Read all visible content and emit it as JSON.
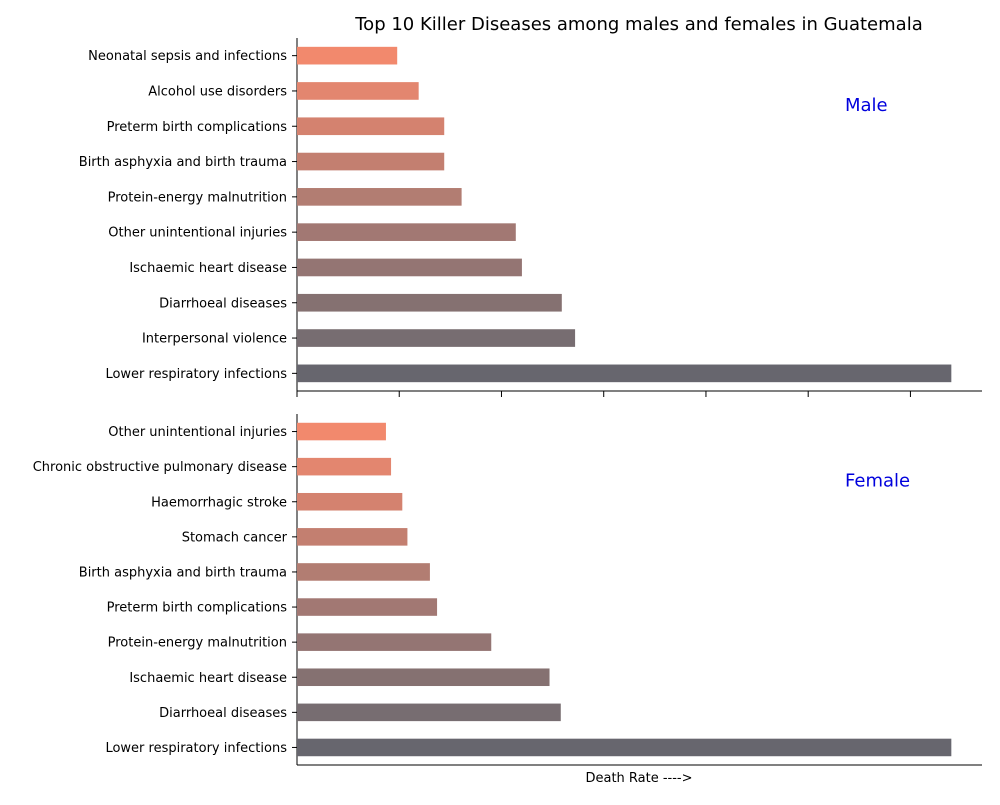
{
  "chart_data": {
    "type": "bar",
    "orientation": "horizontal",
    "title": "Top 10 Killer Diseases among males and females in Guatemala",
    "xlabel": "Death Rate ---->",
    "x_tick_labels_shown": false,
    "grid": false,
    "panel_label_color": "#0000dd",
    "bar_palette": [
      "#67666e",
      "#776d71",
      "#857171",
      "#947573",
      "#a27873",
      "#b27d72",
      "#c37f70",
      "#d4826f",
      "#e3866f",
      "#f2896d"
    ],
    "panels": [
      {
        "label": "Male",
        "categories": [
          "Lower respiratory infections",
          "Interpersonal violence",
          "Diarrhoeal diseases",
          "Ischaemic heart disease",
          "Other unintentional injuries",
          "Protein-energy malnutrition",
          "Birth asphyxia and birth trauma",
          "Preterm birth complications",
          "Alcohol use disorders",
          "Neonatal sepsis and infections"
        ],
        "values": [
          64,
          27.2,
          25.9,
          22,
          21.4,
          16.1,
          14.4,
          14.4,
          11.9,
          9.8
        ]
      },
      {
        "label": "Female",
        "categories": [
          "Lower respiratory infections",
          "Diarrhoeal diseases",
          "Ischaemic heart disease",
          "Protein-energy malnutrition",
          "Preterm birth complications",
          "Birth asphyxia and birth trauma",
          "Stomach cancer",
          "Haemorrhagic stroke",
          "Chronic obstructive pulmonary disease",
          "Other unintentional injuries"
        ],
        "values": [
          64,
          25.8,
          24.7,
          19,
          13.7,
          13,
          10.8,
          10.3,
          9.2,
          8.7
        ]
      }
    ]
  }
}
